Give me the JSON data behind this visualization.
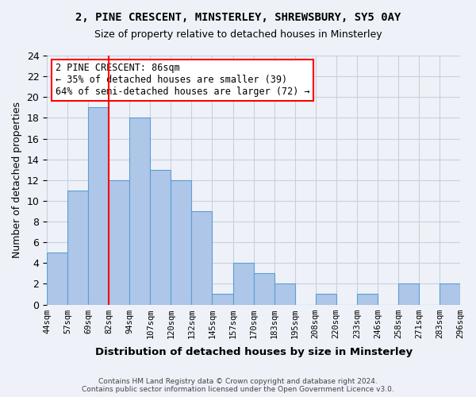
{
  "title1": "2, PINE CRESCENT, MINSTERLEY, SHREWSBURY, SY5 0AY",
  "title2": "Size of property relative to detached houses in Minsterley",
  "xlabel": "Distribution of detached houses by size in Minsterley",
  "ylabel": "Number of detached properties",
  "bar_values": [
    5,
    11,
    19,
    12,
    18,
    13,
    12,
    9,
    1,
    4,
    3,
    2,
    0,
    1,
    0,
    1,
    0,
    2,
    0,
    2
  ],
  "categories": [
    "44sqm",
    "57sqm",
    "69sqm",
    "82sqm",
    "94sqm",
    "107sqm",
    "120sqm",
    "132sqm",
    "145sqm",
    "157sqm",
    "170sqm",
    "183sqm",
    "195sqm",
    "208sqm",
    "220sqm",
    "233sqm",
    "246sqm",
    "258sqm",
    "271sqm",
    "283sqm",
    "296sqm"
  ],
  "bar_colors_main": "#aec6e8",
  "bar_edge_color": "#5a9fd4",
  "annotation_text": "2 PINE CRESCENT: 86sqm\n← 35% of detached houses are smaller (39)\n64% of semi-detached houses are larger (72) →",
  "annotation_box_color": "white",
  "annotation_box_edge": "red",
  "vline_color": "red",
  "ylim": [
    0,
    24
  ],
  "yticks": [
    0,
    2,
    4,
    6,
    8,
    10,
    12,
    14,
    16,
    18,
    20,
    22,
    24
  ],
  "footer": "Contains HM Land Registry data © Crown copyright and database right 2024.\nContains public sector information licensed under the Open Government Licence v3.0.",
  "fig_bg": "#eef2f8",
  "plot_bg": "#eef2f8",
  "grid_color": "#c8d0dc"
}
